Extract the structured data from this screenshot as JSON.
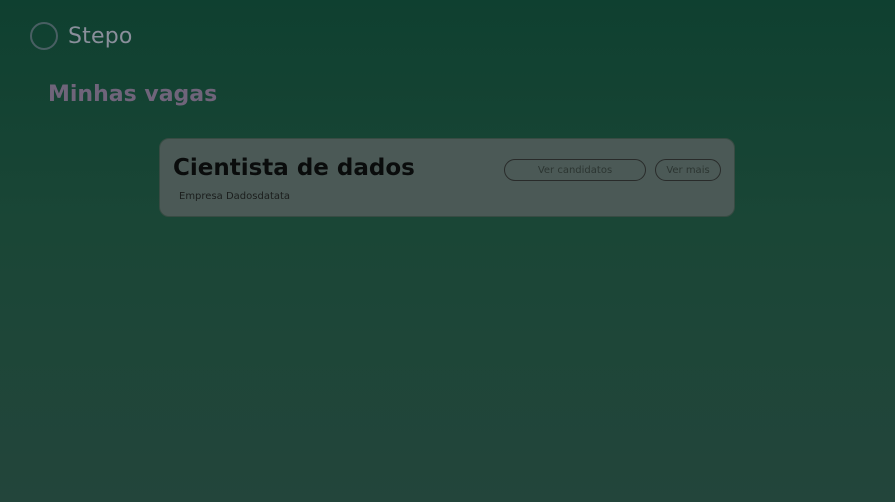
{
  "header": {
    "brand_label": "Stepo"
  },
  "page": {
    "title": "Minhas vagas"
  },
  "job_card": {
    "title": "Cientista de dados",
    "company": "Empresa Dadosdatata",
    "candidates_button": "Ver candidatos",
    "details_button": "Ver mais"
  }
}
